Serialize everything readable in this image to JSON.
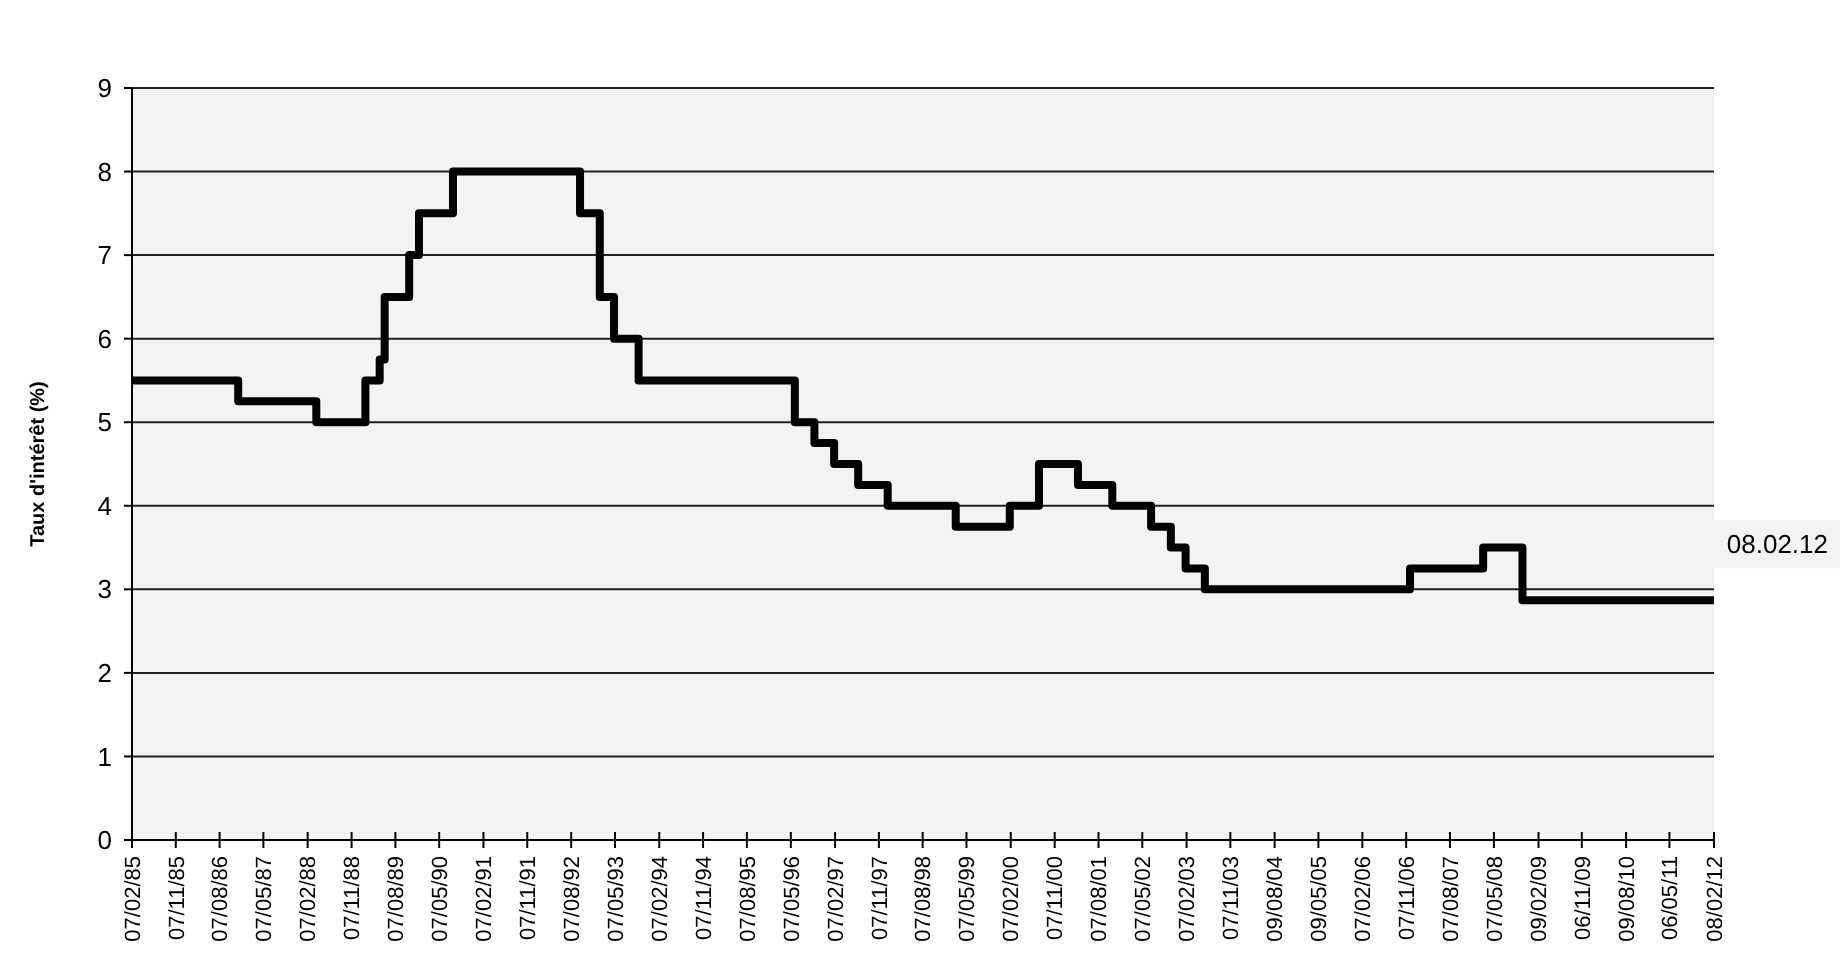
{
  "chart_data": {
    "type": "step",
    "ylabel": "Taux d'intérêt (%)",
    "x": [
      "1985-02-07",
      "1986-12",
      "1988-04",
      "1989-02",
      "1989-05",
      "1989-06",
      "1989-11",
      "1990-01",
      "1990-08",
      "1992-10",
      "1993-02",
      "1993-05",
      "1993-10",
      "1996-06",
      "1996-10",
      "1997-02",
      "1997-07",
      "1998-01",
      "1999-03",
      "2000-02",
      "2000-08",
      "2001-04",
      "2001-11",
      "2002-07",
      "2002-11",
      "2003-02",
      "2003-06",
      "2006-12",
      "2008-03",
      "2008-11",
      "2012-02-08"
    ],
    "series": [
      {
        "color": "#000000",
        "values": [
          5.5,
          5.25,
          5.0,
          5.5,
          5.75,
          6.5,
          7.0,
          7.5,
          8.0,
          7.5,
          6.5,
          6.0,
          5.5,
          5.0,
          4.75,
          4.5,
          4.25,
          4.0,
          3.75,
          4.0,
          4.5,
          4.25,
          4.0,
          3.75,
          3.5,
          3.25,
          3.0,
          3.25,
          3.5,
          2.87,
          2.87
        ]
      }
    ],
    "xlim": [
      "1985-02-07",
      "2012-02-08"
    ],
    "xticks": [
      {
        "value": "1985-02-07",
        "label": "07/02/85"
      },
      {
        "value": "1985-11-07",
        "label": "07/11/85"
      },
      {
        "value": "1986-08-07",
        "label": "07/08/86"
      },
      {
        "value": "1987-05-07",
        "label": "07/05/87"
      },
      {
        "value": "1988-02-07",
        "label": "07/02/88"
      },
      {
        "value": "1988-11-07",
        "label": "07/11/88"
      },
      {
        "value": "1989-08-07",
        "label": "07/08/89"
      },
      {
        "value": "1990-05-07",
        "label": "07/05/90"
      },
      {
        "value": "1991-02-07",
        "label": "07/02/91"
      },
      {
        "value": "1991-11-07",
        "label": "07/11/91"
      },
      {
        "value": "1992-08-07",
        "label": "07/08/92"
      },
      {
        "value": "1993-05-07",
        "label": "07/05/93"
      },
      {
        "value": "1994-02-07",
        "label": "07/02/94"
      },
      {
        "value": "1994-11-07",
        "label": "07/11/94"
      },
      {
        "value": "1995-08-07",
        "label": "07/08/95"
      },
      {
        "value": "1996-05-07",
        "label": "07/05/96"
      },
      {
        "value": "1997-02-07",
        "label": "07/02/97"
      },
      {
        "value": "1997-11-07",
        "label": "07/11/97"
      },
      {
        "value": "1998-08-07",
        "label": "07/08/98"
      },
      {
        "value": "1999-05-07",
        "label": "07/05/99"
      },
      {
        "value": "2000-02-07",
        "label": "07/02/00"
      },
      {
        "value": "2000-11-07",
        "label": "07/11/00"
      },
      {
        "value": "2001-08-07",
        "label": "07/08/01"
      },
      {
        "value": "2002-05-07",
        "label": "07/05/02"
      },
      {
        "value": "2003-02-07",
        "label": "07/02/03"
      },
      {
        "value": "2003-11-07",
        "label": "07/11/03"
      },
      {
        "value": "2004-08-09",
        "label": "09/08/04"
      },
      {
        "value": "2005-05-09",
        "label": "09/05/05"
      },
      {
        "value": "2006-02-07",
        "label": "07/02/06"
      },
      {
        "value": "2006-11-07",
        "label": "07/11/06"
      },
      {
        "value": "2007-08-07",
        "label": "07/08/07"
      },
      {
        "value": "2008-05-07",
        "label": "07/05/08"
      },
      {
        "value": "2009-02-09",
        "label": "09/02/09"
      },
      {
        "value": "2009-11-06",
        "label": "06/11/09"
      },
      {
        "value": "2010-08-09",
        "label": "09/08/10"
      },
      {
        "value": "2011-05-06",
        "label": "06/05/11"
      },
      {
        "value": "2012-02-08",
        "label": "08/02/12"
      }
    ],
    "ylim": [
      0,
      9
    ],
    "yticks": [
      0,
      1,
      2,
      3,
      4,
      5,
      6,
      7,
      8,
      9
    ],
    "grid": "y",
    "annotations": [
      {
        "text": "08.02.12",
        "x": "2012-02-08",
        "y": 2.87
      }
    ]
  }
}
